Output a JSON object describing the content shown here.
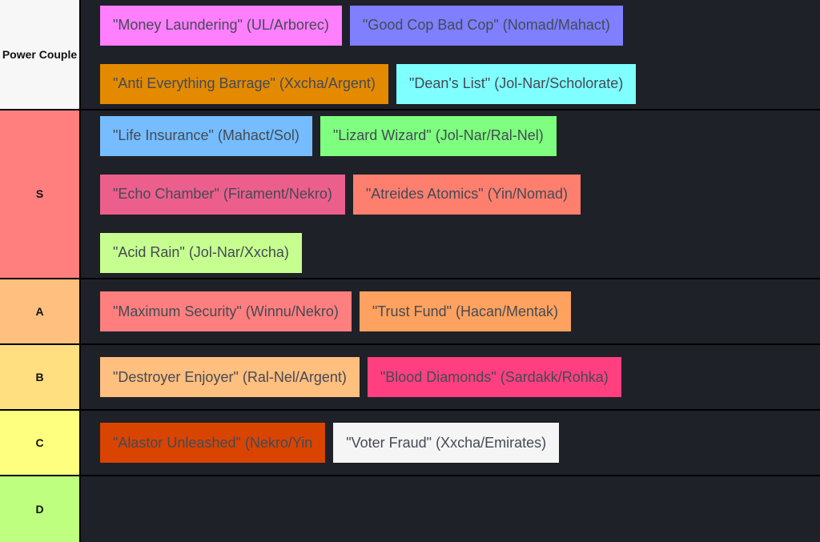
{
  "tiers": [
    {
      "label": "Power Couple",
      "color": "#f7f7f7",
      "height": 136,
      "lines": [
        [
          {
            "text": "\"Money Laundering\" (UL/Arborec)",
            "color": "#ff7fff"
          },
          {
            "text": "\"Good Cop Bad Cop\" (Nomad/Mahact)",
            "color": "#7f7fff"
          }
        ],
        [
          {
            "text": "\"Anti Everything Barrage\" (Xxcha/Argent)",
            "color": "#e48a00"
          },
          {
            "text": "\"Dean's List\" (Jol-Nar/Scholorate)",
            "color": "#7fffff"
          }
        ]
      ]
    },
    {
      "label": "S",
      "color": "#ff7f7f",
      "height": 209,
      "lines": [
        [
          {
            "text": "\"Life Insurance\" (Mahact/Sol)",
            "color": "#75bdff"
          },
          {
            "text": "\"Lizard Wizard\" (Jol-Nar/Ral-Nel)",
            "color": "#7fff7f"
          }
        ],
        [
          {
            "text": "\"Echo Chamber\" (Firament/Nekro)",
            "color": "#ec5f8c"
          },
          {
            "text": "\"Atreides Atomics\" (Yin/Nomad)",
            "color": "#ff7f6f"
          }
        ],
        [
          {
            "text": "\"Acid Rain\" (Jol-Nar/Xxcha)",
            "color": "#c6ff8f"
          }
        ]
      ]
    },
    {
      "label": "A",
      "color": "#ffbf7f",
      "height": 80,
      "lines": [
        [
          {
            "text": "\"Maximum Security\" (Winnu/Nekro)",
            "color": "#ff7f7f"
          },
          {
            "text": "\"Trust Fund\" (Hacan/Mentak)",
            "color": "#ffa25f"
          }
        ]
      ]
    },
    {
      "label": "B",
      "color": "#ffdf7f",
      "height": 80,
      "lines": [
        [
          {
            "text": "\"Destroyer Enjoyer\" (Ral-Nel/Argent)",
            "color": "#ffbf7f"
          },
          {
            "text": "\"Blood Diamonds\" (Sardakk/Rohka)",
            "color": "#ff3f7f"
          }
        ]
      ]
    },
    {
      "label": "C",
      "color": "#ffff7f",
      "height": 80,
      "lines": [
        [
          {
            "text": "\"Alastor Unleashed\" (Nekro/Yin",
            "color": "#d94400"
          },
          {
            "text": "\"Voter Fraud\" (Xxcha/Emirates)",
            "color": "#f5f5f5"
          }
        ]
      ]
    },
    {
      "label": "D",
      "color": "#bfff7f",
      "height": 82,
      "lines": []
    }
  ]
}
